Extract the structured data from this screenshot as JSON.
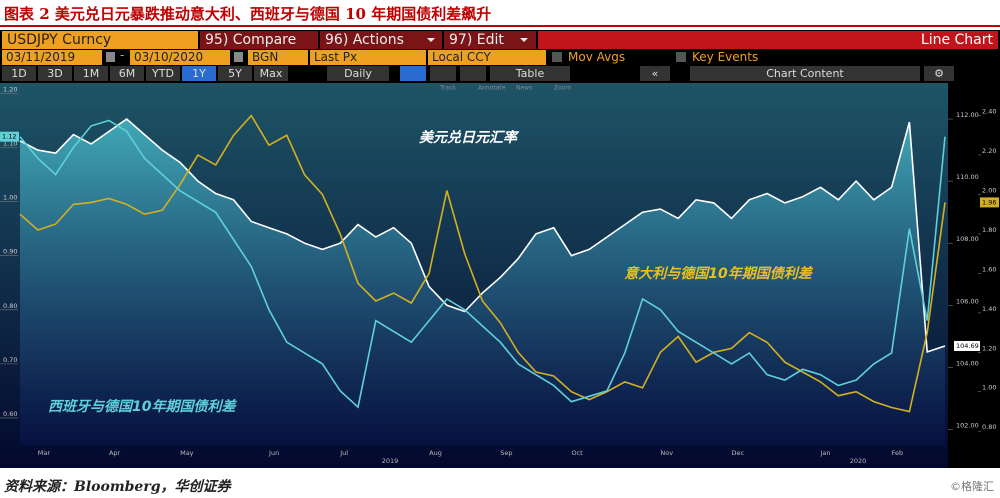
{
  "header": {
    "title": "图表 2  美元兑日元暴跌推动意大利、西班牙与德国 10 年期国债利差飙升"
  },
  "toolbar": {
    "security": "USDJPY Curncy",
    "compare": "95) Compare",
    "actions": "96) Actions",
    "edit": "97) Edit",
    "chart_kind": "Line Chart",
    "start_date": "03/11/2019",
    "end_date": "03/10/2020",
    "source": "BGN",
    "field": "Last Px",
    "currency": "Local CCY",
    "mov_avgs": "Mov Avgs",
    "key_events": "Key Events",
    "ranges": [
      "1D",
      "3D",
      "1M",
      "6M",
      "YTD",
      "1Y",
      "5Y",
      "Max"
    ],
    "frequency": "Daily",
    "table": "Table",
    "chart_content": "Chart Content",
    "tools": [
      "Track",
      "Annotate",
      "News",
      "Zoom"
    ]
  },
  "chart_data": {
    "type": "line",
    "categories": [
      null,
      "Mar",
      null,
      null,
      null,
      "Apr",
      null,
      null,
      null,
      "May",
      null,
      null,
      null,
      null,
      "Jun",
      null,
      null,
      null,
      "Jul",
      null,
      null,
      null,
      null,
      "Aug",
      null,
      null,
      null,
      "Sep",
      null,
      null,
      null,
      "Oct",
      null,
      null,
      null,
      null,
      "Nov",
      null,
      null,
      null,
      "Dec",
      null,
      null,
      null,
      null,
      "Jan",
      null,
      null,
      null,
      "Feb",
      null,
      null,
      null
    ],
    "years": [
      "2019",
      "2020"
    ],
    "series": [
      {
        "name": "USDJPY",
        "color": "#ffffff",
        "axis": "y2",
        "values": [
          111.3,
          111.0,
          110.9,
          111.5,
          111.2,
          111.6,
          112.0,
          111.5,
          111.0,
          110.6,
          110.0,
          109.6,
          109.4,
          108.7,
          108.5,
          108.3,
          108.0,
          107.8,
          108.0,
          108.6,
          108.2,
          108.5,
          108.0,
          106.6,
          106.0,
          105.8,
          106.4,
          106.9,
          107.5,
          108.3,
          108.5,
          107.6,
          107.8,
          108.2,
          108.6,
          109.0,
          109.1,
          108.8,
          109.4,
          109.3,
          108.8,
          109.4,
          109.6,
          109.3,
          109.5,
          109.8,
          109.4,
          110.0,
          109.4,
          109.8,
          111.9,
          104.5,
          104.69
        ]
      },
      {
        "name": "Italy-Germany",
        "color": "#d4b020",
        "axis": "y3",
        "values": [
          1.9,
          1.82,
          1.85,
          1.95,
          1.96,
          1.98,
          1.95,
          1.9,
          1.92,
          2.05,
          2.2,
          2.15,
          2.3,
          2.4,
          2.25,
          2.3,
          2.1,
          2.0,
          1.8,
          1.55,
          1.46,
          1.5,
          1.45,
          1.6,
          2.02,
          1.7,
          1.46,
          1.35,
          1.2,
          1.1,
          1.08,
          1.0,
          0.96,
          1.0,
          1.05,
          1.02,
          1.2,
          1.28,
          1.15,
          1.2,
          1.22,
          1.3,
          1.25,
          1.15,
          1.1,
          1.05,
          0.98,
          1.0,
          0.95,
          0.92,
          0.9,
          1.3,
          1.96
        ]
      },
      {
        "name": "Spain-Germany",
        "color": "#5fd0d8",
        "axis": "y",
        "values": [
          1.12,
          1.08,
          1.05,
          1.1,
          1.14,
          1.15,
          1.13,
          1.08,
          1.05,
          1.02,
          1.0,
          0.98,
          0.93,
          0.88,
          0.8,
          0.74,
          0.72,
          0.7,
          0.65,
          0.62,
          0.78,
          0.76,
          0.74,
          0.78,
          0.82,
          0.8,
          0.77,
          0.74,
          0.7,
          0.68,
          0.66,
          0.63,
          0.64,
          0.65,
          0.72,
          0.82,
          0.8,
          0.76,
          0.74,
          0.72,
          0.7,
          0.72,
          0.68,
          0.67,
          0.69,
          0.68,
          0.66,
          0.67,
          0.7,
          0.72,
          0.95,
          0.78,
          1.12
        ]
      }
    ],
    "ylim": [
      0.55,
      1.21
    ],
    "yticks": [
      {
        "value": 0.6,
        "label": "0.60"
      },
      {
        "value": 0.7,
        "label": "0.70"
      },
      {
        "value": 0.8,
        "label": "0.80"
      },
      {
        "value": 0.9,
        "label": "0.90"
      },
      {
        "value": 1.0,
        "label": "1.00"
      },
      {
        "value": 1.1,
        "label": "1.10"
      },
      {
        "value": 1.2,
        "label": "1.20"
      }
    ],
    "y2lim": [
      101.5,
      113
    ],
    "y2ticks": [
      {
        "value": 102,
        "label": "102.00"
      },
      {
        "value": 104,
        "label": "104.00"
      },
      {
        "value": 106,
        "label": "106.00"
      },
      {
        "value": 108,
        "label": "108.00"
      },
      {
        "value": 110,
        "label": "110.00"
      },
      {
        "value": 112,
        "label": "112.00"
      }
    ],
    "y3lim": [
      0.73,
      2.54
    ],
    "y3ticks": [
      {
        "value": 0.8,
        "label": "0.80"
      },
      {
        "value": 1.0,
        "label": "1.00"
      },
      {
        "value": 1.2,
        "label": "1.20"
      },
      {
        "value": 1.4,
        "label": "1.40"
      },
      {
        "value": 1.6,
        "label": "1.60"
      },
      {
        "value": 1.8,
        "label": "1.80"
      },
      {
        "value": 2.0,
        "label": "2.00"
      },
      {
        "value": 2.2,
        "label": "2.20"
      },
      {
        "value": 2.4,
        "label": "2.40"
      }
    ],
    "annotations": [
      {
        "text": "美元兑日元汇率",
        "color": "#ffffff"
      },
      {
        "text": "意大利与德国10年期国债利差",
        "color": "#e8c020"
      },
      {
        "text": "西班牙与德国10年期国债利差",
        "color": "#5fd0d8"
      }
    ],
    "grid": false
  },
  "source": "资料来源：Bloomberg，华创证券",
  "watermark": "©格隆汇"
}
